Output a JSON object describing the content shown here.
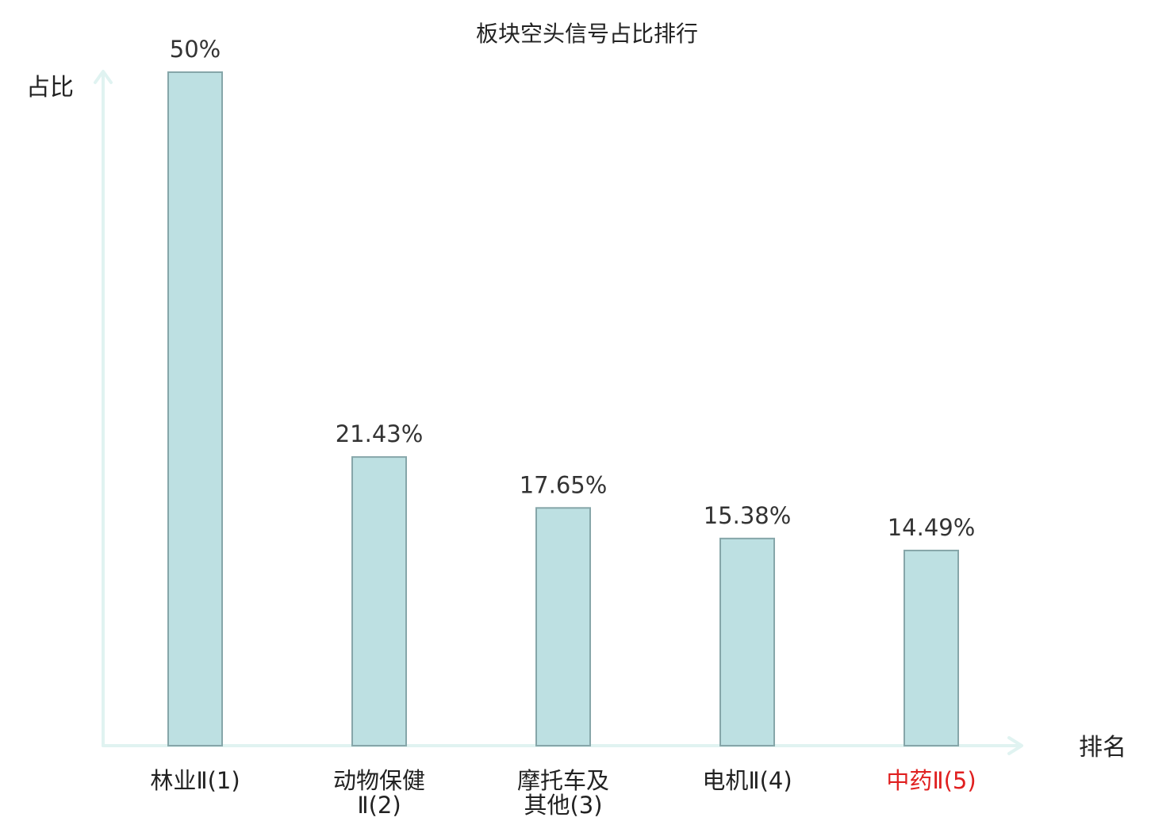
{
  "chart_data": {
    "type": "bar",
    "title": "板块空头信号占比排行",
    "ylabel": "占比",
    "xlabel": "排名",
    "ylim": [
      0,
      50
    ],
    "grid": false,
    "categories": [
      [
        "林业Ⅱ(1)"
      ],
      [
        "动物保健",
        "Ⅱ(2)"
      ],
      [
        "摩托车及",
        "其他(3)"
      ],
      [
        "电机Ⅱ(4)"
      ],
      [
        "中药Ⅱ(5)"
      ]
    ],
    "values": [
      50,
      21.43,
      17.65,
      15.38,
      14.49
    ],
    "value_labels": [
      "50%",
      "21.43%",
      "17.65%",
      "15.38%",
      "14.49%"
    ],
    "highlight_index": 4,
    "colors": {
      "bar_fill": "#bde0e2",
      "bar_stroke": "#86a6a9",
      "axis": "#e0f3f1",
      "highlight_text": "#e02020",
      "text": "#222222"
    }
  }
}
